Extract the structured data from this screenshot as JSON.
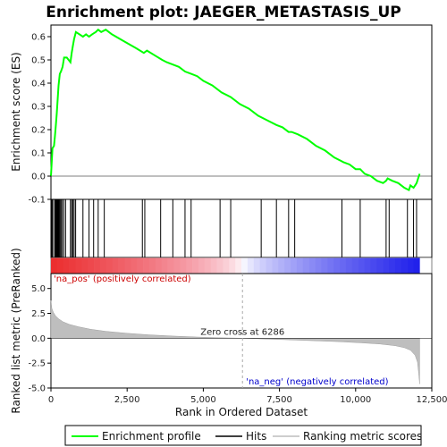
{
  "chart_data": {
    "type": "line",
    "title": "Enrichment plot: JAEGER_METASTASIS_UP",
    "xlabel": "Rank in Ordered Dataset",
    "ylabel_top": "Enrichment score (ES)",
    "ylabel_bottom": "Ranked list metric (PreRanked)",
    "xlim": [
      0,
      12500
    ],
    "x_ticks": [
      0,
      2500,
      5000,
      7500,
      10000,
      12500
    ],
    "x_tick_labels": [
      "0",
      "2,500",
      "5,000",
      "7,500",
      "10,000",
      "12,500"
    ],
    "es_panel": {
      "ylim": [
        -0.1,
        0.65
      ],
      "y_ticks": [
        -0.1,
        0.0,
        0.1,
        0.2,
        0.3,
        0.4,
        0.5,
        0.6
      ],
      "y_tick_labels": [
        "-0.1",
        "0.0",
        "0.1",
        "0.2",
        "0.3",
        "0.4",
        "0.5",
        "0.6"
      ],
      "series": [
        {
          "name": "Enrichment profile",
          "color": "#00ff00",
          "x": [
            0,
            50,
            100,
            130,
            160,
            190,
            220,
            250,
            290,
            330,
            380,
            430,
            520,
            640,
            680,
            720,
            760,
            820,
            1050,
            1150,
            1250,
            1350,
            1470,
            1550,
            1650,
            1800,
            2000,
            2400,
            2800,
            3050,
            3150,
            3400,
            3650,
            3800,
            4000,
            4200,
            4400,
            4600,
            4800,
            5000,
            5300,
            5600,
            5900,
            6200,
            6500,
            6800,
            7100,
            7400,
            7600,
            7800,
            7900,
            8100,
            8400,
            8700,
            9000,
            9300,
            9600,
            9800,
            10000,
            10150,
            10300,
            10500,
            10700,
            10900,
            11000,
            11050,
            11200,
            11400,
            11600,
            11750,
            11800,
            11900,
            11950,
            12000,
            12050,
            12100
          ],
          "y": [
            0.0,
            0.12,
            0.13,
            0.17,
            0.22,
            0.27,
            0.33,
            0.39,
            0.44,
            0.45,
            0.47,
            0.51,
            0.51,
            0.49,
            0.53,
            0.56,
            0.59,
            0.62,
            0.6,
            0.61,
            0.6,
            0.61,
            0.62,
            0.63,
            0.62,
            0.63,
            0.61,
            0.58,
            0.55,
            0.53,
            0.54,
            0.52,
            0.5,
            0.49,
            0.48,
            0.47,
            0.45,
            0.44,
            0.43,
            0.41,
            0.39,
            0.36,
            0.34,
            0.31,
            0.29,
            0.26,
            0.24,
            0.22,
            0.21,
            0.19,
            0.19,
            0.18,
            0.16,
            0.13,
            0.11,
            0.08,
            0.06,
            0.05,
            0.03,
            0.03,
            0.01,
            0.0,
            -0.02,
            -0.03,
            -0.02,
            -0.01,
            -0.02,
            -0.03,
            -0.05,
            -0.06,
            -0.04,
            -0.05,
            -0.04,
            -0.03,
            -0.01,
            0.01
          ]
        }
      ]
    },
    "hits": {
      "name": "Hits",
      "color": "#000000",
      "x": [
        30,
        60,
        120,
        150,
        175,
        195,
        215,
        235,
        255,
        275,
        300,
        330,
        370,
        420,
        480,
        640,
        680,
        720,
        760,
        810,
        1050,
        1250,
        1400,
        1550,
        1750,
        3000,
        3080,
        3600,
        4000,
        4400,
        4600,
        5550,
        5900,
        6900,
        7400,
        7800,
        8000,
        9550,
        10150,
        11000,
        11100,
        11700,
        11900,
        12000
      ]
    },
    "metric_panel": {
      "ylim": [
        -5,
        6.5
      ],
      "y_ticks": [
        -5.0,
        -2.5,
        0.0,
        2.5,
        5.0
      ],
      "y_tick_labels": [
        "-5.0",
        "-2.5",
        "0.0",
        "2.5",
        "5.0"
      ],
      "series": [
        {
          "name": "Ranking metric scores",
          "color": "#bebebe",
          "x": [
            0,
            30,
            80,
            150,
            250,
            400,
            600,
            900,
            1300,
            1800,
            2500,
            3200,
            4000,
            4800,
            5500,
            6286,
            7000,
            7800,
            8600,
            9400,
            10200,
            10800,
            11300,
            11600,
            11800,
            11950,
            12030,
            12070,
            12100
          ],
          "y": [
            3.8,
            3.0,
            2.6,
            2.25,
            1.95,
            1.65,
            1.4,
            1.15,
            0.9,
            0.7,
            0.5,
            0.35,
            0.22,
            0.12,
            0.05,
            0.0,
            -0.08,
            -0.16,
            -0.25,
            -0.34,
            -0.46,
            -0.58,
            -0.75,
            -0.95,
            -1.2,
            -1.7,
            -2.4,
            -3.5,
            -4.6
          ]
        }
      ],
      "zero_cross_label": "Zero cross at 6286",
      "zero_cross": 6286,
      "pos_label": "'na_pos' (positively correlated)",
      "neg_label": "'na_neg' (negatively correlated)",
      "pos_color": "#cc0000",
      "neg_color": "#0000cc"
    },
    "legend": {
      "placement": "bottom",
      "entries": [
        "Enrichment profile",
        "Hits",
        "Ranking metric scores"
      ]
    }
  }
}
